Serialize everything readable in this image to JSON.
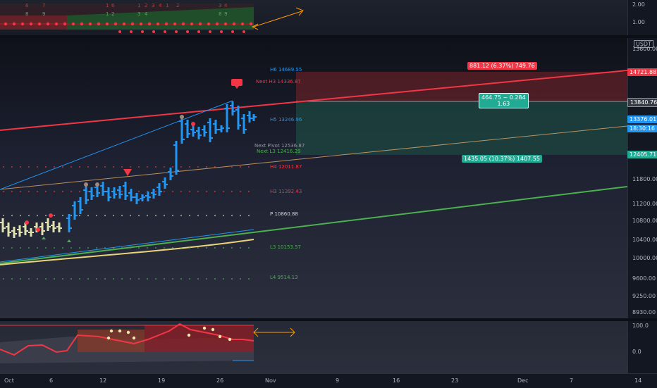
{
  "top_axis": {
    "labels": [
      "2.00",
      "1.00"
    ]
  },
  "top_counts": [
    "6",
    "7",
    "1",
    "6",
    "1",
    "2",
    "3",
    "4",
    "1",
    "2",
    "3",
    "4",
    "8",
    "9",
    "1",
    "2",
    "3",
    "4",
    "8",
    "9"
  ],
  "main_axis": {
    "currency": "USDT",
    "labels": [
      "13600.00",
      "11800.00",
      "11200.00",
      "10800.00",
      "10400.00",
      "10000.00",
      "9600.00",
      "9250.00",
      "8930.00"
    ],
    "price_tags": {
      "tag_1": "14721.88",
      "tag_2": "13840.76",
      "tag_3": "13376.01",
      "countdown": "18:30:16",
      "tag_4": "12405.71"
    }
  },
  "pivots": {
    "h6": "H6 14689.55",
    "next_h3": "Next H3 14336.87",
    "h5": "H5 13246.96",
    "next_pivot": "Next Pivot 12536.87",
    "next_l3": "Next L3 12416.29",
    "h4": "H4 12011.87",
    "h3": "H3 11392.43",
    "p": "P 10860.88",
    "l3": "L3 10153.57",
    "l4": "L4 9514.13"
  },
  "position_tool": {
    "target_label": "881.12 (6.37%) 749.76",
    "center_line1": "464.75 ~ 0.284",
    "center_line2": "1.63",
    "stop_label": "1435.05 (10.37%) 1407.55"
  },
  "bottom_axis": {
    "labels": [
      "100.0",
      "0.0"
    ]
  },
  "time_axis": {
    "labels": [
      "Oct",
      "6",
      "12",
      "19",
      "26",
      "Nov",
      "9",
      "16",
      "23",
      "Dec",
      "7",
      "14"
    ]
  },
  "colors": {
    "up_bar": "#2196f3",
    "down_bar": "#e0e0b0",
    "resistance_line": "#f23645",
    "support_line": "#4caf50",
    "target_zone": "#f23645",
    "stop_zone": "#22ab94"
  }
}
